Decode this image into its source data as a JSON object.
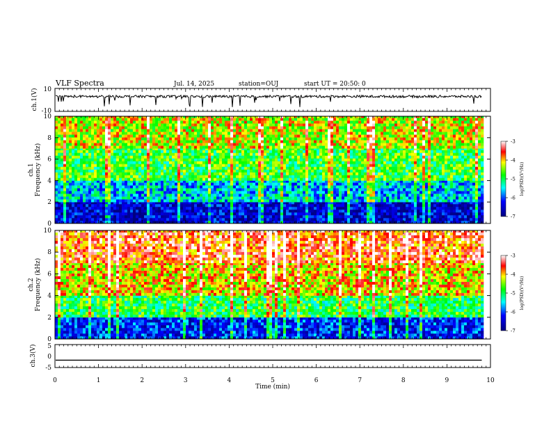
{
  "header": {
    "title": "VLF Spectra",
    "date": "Jul. 14, 2025",
    "station": "station=OUJ",
    "start": "start UT =  20:50: 0"
  },
  "chart_data": [
    {
      "panel": "ch1-waveform",
      "type": "line",
      "ylabel": "ch.1(V)",
      "ylim": [
        -10,
        10
      ],
      "y_tick_labels": [
        "10",
        "-10"
      ],
      "series": [
        {
          "values_description_baseline": 3,
          "noise_range": [
            0,
            6
          ]
        }
      ]
    },
    {
      "panel": "ch1-spectrogram",
      "type": "heatmap",
      "ylabel": "ch.1\nFrequency (kHz)",
      "ylim": [
        0,
        10
      ],
      "y_tick_labels": [
        "0",
        "2",
        "4",
        "6",
        "8",
        "10"
      ],
      "colorbar": {
        "label": "log(PSD)(V²/Hz)",
        "range": [
          -7,
          -3
        ],
        "tick_labels": [
          "-3",
          "-4",
          "-5",
          "-6",
          "-7"
        ]
      },
      "bands": [
        {
          "f_low": 0,
          "f_high": 2,
          "level": -6.5
        },
        {
          "f_low": 2,
          "f_high": 4,
          "level": -5.6
        },
        {
          "f_low": 4,
          "f_high": 7,
          "level": -4.8
        },
        {
          "f_low": 7,
          "f_high": 10,
          "level": -4.3
        }
      ]
    },
    {
      "panel": "ch2-spectrogram",
      "type": "heatmap",
      "ylabel": "ch.2\nFrequency (kHz)",
      "ylim": [
        0,
        10
      ],
      "y_tick_labels": [
        "0",
        "2",
        "4",
        "6",
        "8",
        "10"
      ],
      "colorbar": {
        "label": "log(PSD)(V²/Hz)",
        "range": [
          -7,
          -3
        ],
        "tick_labels": [
          "-3",
          "-4",
          "-5",
          "-6",
          "-7"
        ]
      },
      "bands": [
        {
          "f_low": 0,
          "f_high": 2,
          "level": -6.2
        },
        {
          "f_low": 2,
          "f_high": 4,
          "level": -4.9
        },
        {
          "f_low": 4,
          "f_high": 7,
          "level": -4.1
        },
        {
          "f_low": 7,
          "f_high": 10,
          "level": -3.6
        }
      ]
    },
    {
      "panel": "ch3-waveform",
      "type": "line",
      "ylabel": "ch.3(V)",
      "ylim": [
        -5,
        5
      ],
      "y_tick_labels": [
        "5",
        "0",
        "-5"
      ],
      "series": [
        {
          "constant_value": -1.8
        }
      ]
    }
  ],
  "x_axis": {
    "label": "Time (min)",
    "xlim": [
      0,
      10
    ],
    "tick_labels": [
      "0",
      "1",
      "2",
      "3",
      "4",
      "5",
      "6",
      "7",
      "8",
      "9",
      "10"
    ],
    "data_end_min": 9.8
  }
}
